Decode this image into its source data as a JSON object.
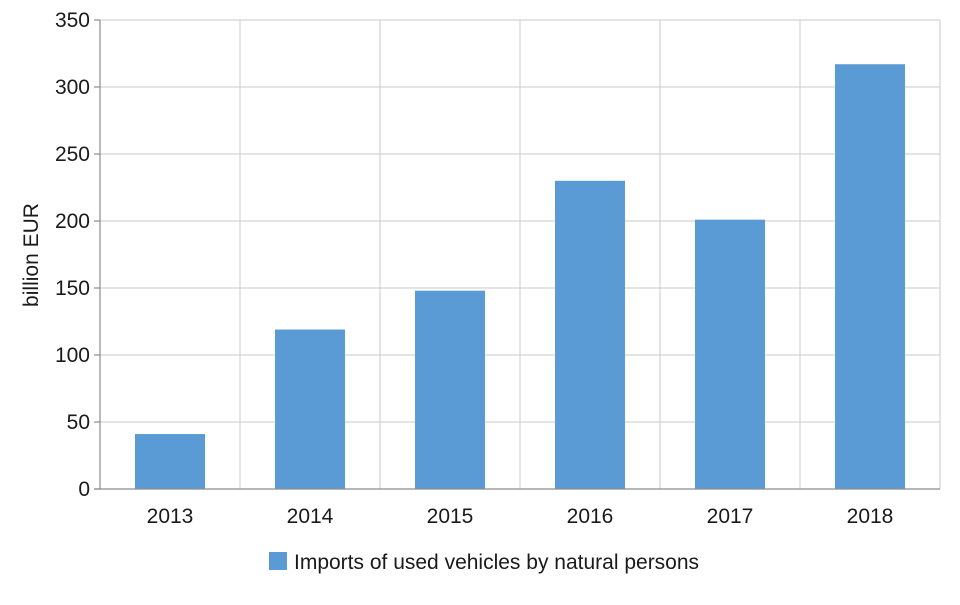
{
  "chart_data": {
    "type": "bar",
    "categories": [
      "2013",
      "2014",
      "2015",
      "2016",
      "2017",
      "2018"
    ],
    "series": [
      {
        "name": "Imports of used vehicles by natural persons",
        "values": [
          41,
          119,
          148,
          230,
          201,
          317
        ],
        "color": "#5b9bd5"
      }
    ],
    "ylabel": "billion EUR",
    "xlabel": "",
    "ylim": [
      0,
      350
    ],
    "yticks": [
      0,
      50,
      100,
      150,
      200,
      250,
      300,
      350
    ],
    "grid": "on",
    "legend_position": "bottom-center"
  }
}
